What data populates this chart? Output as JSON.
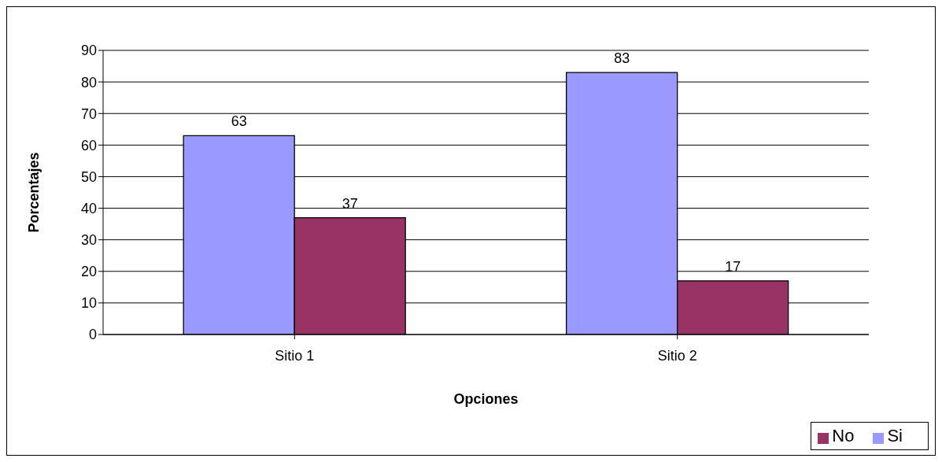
{
  "chart_data": {
    "type": "bar",
    "xlabel": "Opciones",
    "ylabel": "Porcentajes",
    "categories": [
      "Sitio 1",
      "Sitio 2"
    ],
    "series": [
      {
        "name": "Si",
        "color": "#9999ff",
        "values": [
          63,
          83
        ]
      },
      {
        "name": "No",
        "color": "#993366",
        "values": [
          37,
          17
        ]
      }
    ],
    "ylim": [
      0,
      90
    ],
    "yticks": [
      0,
      10,
      20,
      30,
      40,
      50,
      60,
      70,
      80,
      90
    ],
    "grid": "y",
    "legend": "bottom right",
    "data_labels": true
  }
}
